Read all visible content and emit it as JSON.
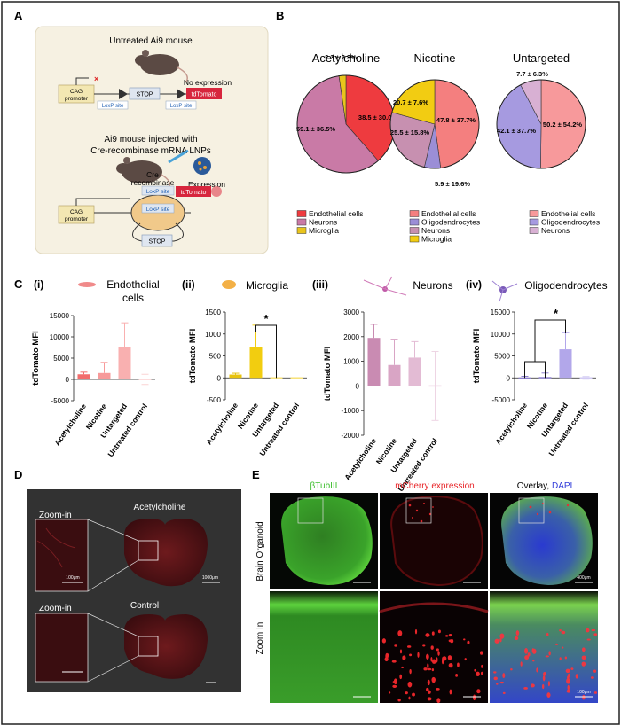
{
  "panels": {
    "a": "A",
    "b": "B",
    "c": "C",
    "d": "D",
    "e": "E"
  },
  "panel_a": {
    "untreated_title": "Untreated Ai9 mouse",
    "no_expression": "No expression",
    "injected_title_1": "Ai9 mouse injected with",
    "injected_title_2": "Cre-recombinase mRNA LNPs",
    "cag_1": "CAG",
    "cag_2": "promoter",
    "stop": "STOP",
    "loxp": "LoxP site",
    "tdtomato": "tdTomato",
    "cre_1": "Cre",
    "cre_2": "recombinase",
    "expression": "Expression"
  },
  "panel_b": {
    "charts": [
      {
        "title": "Acetylcholine",
        "slices": [
          {
            "label": "38.5 ± 30.0%",
            "value": 38.5,
            "color": "#ee3b3f"
          },
          {
            "label": "59.1 ± 36.5%",
            "value": 59.1,
            "color": "#c97aa6"
          },
          {
            "label": "2.3 ± 2.3%",
            "value": 2.3,
            "color": "#e9c41c"
          }
        ],
        "legend": [
          {
            "label": "Endothelial cells",
            "color": "#ee3b3f"
          },
          {
            "label": "Neurons",
            "color": "#c97aa6"
          },
          {
            "label": "Microglia",
            "color": "#e9c41c"
          }
        ]
      },
      {
        "title": "Nicotine",
        "slices": [
          {
            "label": "47.8 ± 37.7%",
            "value": 47.8,
            "color": "#f47f7f"
          },
          {
            "label": "5.9 ± 19.6%",
            "value": 5.9,
            "color": "#9b8ed6"
          },
          {
            "label": "25.5 ± 15.8%",
            "value": 25.5,
            "color": "#c790b0"
          },
          {
            "label": "20.7 ± 7.6%",
            "value": 20.7,
            "color": "#f2cc12"
          }
        ],
        "legend": [
          {
            "label": "Endothelial cells",
            "color": "#f47f7f"
          },
          {
            "label": "Oligodendrocytes",
            "color": "#9b8ed6"
          },
          {
            "label": "Neurons",
            "color": "#c790b0"
          },
          {
            "label": "Microglia",
            "color": "#f2cc12"
          }
        ]
      },
      {
        "title": "Untargeted",
        "slices": [
          {
            "label": "50.2 ± 54.2%",
            "value": 50.2,
            "color": "#f7999b"
          },
          {
            "label": "42.1 ± 37.7%",
            "value": 42.1,
            "color": "#a69ae0"
          },
          {
            "label": "7.7 ± 6.3%",
            "value": 7.7,
            "color": "#d8b0d3"
          }
        ],
        "legend": [
          {
            "label": "Endothelial cells",
            "color": "#f7999b"
          },
          {
            "label": "Oligodendrocytes",
            "color": "#a69ae0"
          },
          {
            "label": "Neurons",
            "color": "#d8b0d3"
          }
        ]
      }
    ]
  },
  "chart_data": [
    {
      "type": "bar",
      "panel": "(i)",
      "title": "Endothelial cells",
      "ylabel": "tdTomato MFI",
      "ylim": [
        -5000,
        15000
      ],
      "yticks": [
        "15000",
        "10000",
        "5000",
        "0",
        "-5000"
      ],
      "categories": [
        "Acetylcholine",
        "Nicotine",
        "Untargeted",
        "Untreated control"
      ],
      "values": [
        1200,
        1500,
        7500,
        0
      ],
      "errors": [
        500,
        2500,
        5800,
        1200
      ],
      "colors": [
        "#f26d6d",
        "#f79a9a",
        "#f9b0b0",
        "#fbd3d3"
      ]
    },
    {
      "type": "bar",
      "panel": "(ii)",
      "title": "Microglia",
      "ylabel": "tdTomato MFI",
      "ylim": [
        -500,
        1500
      ],
      "yticks": [
        "1500",
        "1000",
        "500",
        "0",
        "-500"
      ],
      "categories": [
        "Acetylcholine",
        "Nicotine",
        "Untargeted",
        "Untreated control"
      ],
      "values": [
        75,
        700,
        0,
        0
      ],
      "errors": [
        30,
        500,
        0,
        0
      ],
      "colors": [
        "#e8c30c",
        "#f2cd10",
        "#f7e27a",
        "#f7e27a"
      ],
      "significance": "*"
    },
    {
      "type": "bar",
      "panel": "(iii)",
      "title": "Neurons",
      "ylabel": "tdTomato MFI",
      "ylim": [
        -2000,
        3000
      ],
      "yticks": [
        "3000",
        "2000",
        "1000",
        "0",
        "-1000",
        "-2000"
      ],
      "categories": [
        "Acetylcholine",
        "Nicotine",
        "Untargeted",
        "Untreated control"
      ],
      "values": [
        1950,
        850,
        1150,
        0
      ],
      "errors": [
        550,
        1050,
        650,
        1400
      ],
      "colors": [
        "#c98bb2",
        "#d9a5c5",
        "#e3bbd4",
        "#eed5e4"
      ]
    },
    {
      "type": "bar",
      "panel": "(iv)",
      "title": "Oligodendrocytes",
      "ylabel": "tdTomato MFI",
      "ylim": [
        -5000,
        15000
      ],
      "yticks": [
        "15000",
        "10000",
        "5000",
        "0",
        "-5000"
      ],
      "categories": [
        "Acetylcholine",
        "Nicotine",
        "Untargeted",
        "Untreated control"
      ],
      "values": [
        100,
        200,
        6500,
        0
      ],
      "errors": [
        250,
        900,
        3800,
        300
      ],
      "colors": [
        "#8c7fd0",
        "#8c7fd0",
        "#b2a7ea",
        "#d2cbf3"
      ],
      "significance": "*"
    }
  ],
  "panel_d": {
    "zoom_in": "Zoom-in",
    "acetylcholine": "Acetylcholine",
    "control": "Control",
    "scale_small": "100μm",
    "scale_large": "1000μm"
  },
  "panel_e": {
    "col1": "βTubIII",
    "col2": "mCherry expression",
    "col3_a": "Overlay, ",
    "col3_b": "DAPI",
    "row1": "Brain Organoid",
    "row2": "Zoom In",
    "scale_top": "400μm",
    "scale_bottom": "100μm"
  },
  "colors": {
    "endothelial": "#ee3b3f",
    "neurons": "#c97aa6",
    "microglia": "#e9c41c",
    "oligodendrocytes": "#9b8ed6",
    "green": "#3fbf2f",
    "red": "#e8262a",
    "blue": "#2f3ad9"
  }
}
